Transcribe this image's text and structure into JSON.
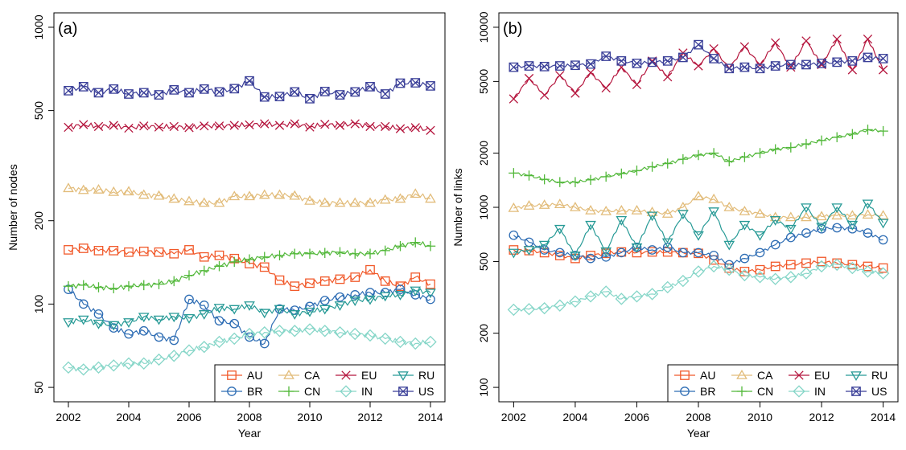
{
  "chart_data": [
    {
      "type": "line",
      "panel_label": "(a)",
      "xlabel": "Year",
      "ylabel": "Number of nodes",
      "xlim": [
        2002,
        2014
      ],
      "ylim": [
        50,
        1000
      ],
      "yscale": "log",
      "xticks": [
        "2002",
        "2004",
        "2006",
        "2008",
        "2010",
        "2012",
        "2014"
      ],
      "yticks": [
        "50",
        "100",
        "200",
        "500",
        "1000"
      ],
      "grid": false,
      "legend_position": "bottom-right",
      "series": [
        {
          "name": "AU",
          "color": "#f1592a",
          "marker": "square",
          "x": [
            2002,
            2002.5,
            2003,
            2003.5,
            2004,
            2004.5,
            2005,
            2005.5,
            2006,
            2006.5,
            2007,
            2007.5,
            2008,
            2008.5,
            2009,
            2009.5,
            2010,
            2010.5,
            2011,
            2011.5,
            2012,
            2012.5,
            2013,
            2013.5,
            2014
          ],
          "values": [
            157,
            159,
            156,
            156,
            154,
            155,
            154,
            152,
            157,
            148,
            150,
            146,
            140,
            136,
            122,
            116,
            119,
            121,
            123,
            125,
            133,
            121,
            116,
            125,
            118
          ]
        },
        {
          "name": "BR",
          "color": "#2e6db4",
          "marker": "circle",
          "x": [
            2002,
            2002.5,
            2003,
            2003.5,
            2004,
            2004.5,
            2005,
            2005.5,
            2006,
            2006.5,
            2007,
            2007.5,
            2008,
            2008.5,
            2009,
            2009.5,
            2010,
            2010.5,
            2011,
            2011.5,
            2012,
            2012.5,
            2013,
            2013.5,
            2014
          ],
          "values": [
            113,
            100,
            92,
            82,
            78,
            80,
            76,
            74,
            104,
            99,
            87,
            85,
            76,
            72,
            96,
            95,
            98,
            103,
            106,
            108,
            110,
            110,
            113,
            108,
            104
          ]
        },
        {
          "name": "CA",
          "color": "#e2bc7a",
          "marker": "triangle-up",
          "x": [
            2002,
            2002.5,
            2003,
            2003.5,
            2004,
            2004.5,
            2005,
            2005.5,
            2006,
            2006.5,
            2007,
            2007.5,
            2008,
            2008.5,
            2009,
            2009.5,
            2010,
            2010.5,
            2011,
            2011.5,
            2012,
            2012.5,
            2013,
            2013.5,
            2014
          ],
          "values": [
            262,
            258,
            259,
            254,
            255,
            248,
            246,
            240,
            235,
            232,
            232,
            245,
            245,
            248,
            248,
            246,
            236,
            232,
            232,
            232,
            232,
            238,
            240,
            250,
            240
          ]
        },
        {
          "name": "CN",
          "color": "#52b83a",
          "marker": "plus",
          "x": [
            2002,
            2002.5,
            2003,
            2003.5,
            2004,
            2004.5,
            2005,
            2005.5,
            2006,
            2006.5,
            2007,
            2007.5,
            2008,
            2008.5,
            2009,
            2009.5,
            2010,
            2010.5,
            2011,
            2011.5,
            2012,
            2012.5,
            2013,
            2013.5,
            2014
          ],
          "values": [
            116,
            117,
            115,
            114,
            116,
            117,
            118,
            121,
            127,
            132,
            137,
            142,
            145,
            148,
            150,
            152,
            152,
            153,
            154,
            152,
            152,
            156,
            162,
            167,
            162
          ]
        },
        {
          "name": "EU",
          "color": "#b5163e",
          "marker": "x",
          "x": [
            2002,
            2002.5,
            2003,
            2003.5,
            2004,
            2004.5,
            2005,
            2005.5,
            2006,
            2006.5,
            2007,
            2007.5,
            2008,
            2008.5,
            2009,
            2009.5,
            2010,
            2010.5,
            2011,
            2011.5,
            2012,
            2012.5,
            2013,
            2013.5,
            2014
          ],
          "values": [
            435,
            445,
            438,
            442,
            432,
            440,
            436,
            438,
            434,
            440,
            440,
            442,
            444,
            448,
            442,
            448,
            436,
            446,
            442,
            448,
            438,
            438,
            430,
            434,
            424
          ]
        },
        {
          "name": "IN",
          "color": "#86d6c8",
          "marker": "diamond",
          "x": [
            2002,
            2002.5,
            2003,
            2003.5,
            2004,
            2004.5,
            2005,
            2005.5,
            2006,
            2006.5,
            2007,
            2007.5,
            2008,
            2008.5,
            2009,
            2009.5,
            2010,
            2010.5,
            2011,
            2011.5,
            2012,
            2012.5,
            2013,
            2013.5,
            2014
          ],
          "values": [
            59,
            58,
            59,
            60,
            61,
            61,
            63,
            65,
            68,
            70,
            73,
            75,
            78,
            79,
            80,
            80,
            81,
            80,
            79,
            78,
            77,
            75,
            73,
            72,
            73
          ]
        },
        {
          "name": "RU",
          "color": "#279a96",
          "marker": "triangle-down",
          "x": [
            2002,
            2002.5,
            2003,
            2003.5,
            2004,
            2004.5,
            2005,
            2005.5,
            2006,
            2006.5,
            2007,
            2007.5,
            2008,
            2008.5,
            2009,
            2009.5,
            2010,
            2010.5,
            2011,
            2011.5,
            2012,
            2012.5,
            2013,
            2013.5,
            2014
          ],
          "values": [
            86,
            88,
            85,
            84,
            86,
            90,
            88,
            90,
            89,
            92,
            97,
            96,
            99,
            93,
            96,
            92,
            94,
            96,
            99,
            103,
            104,
            107,
            108,
            112,
            110
          ]
        },
        {
          "name": "US",
          "color": "#3a3f98",
          "marker": "square-x",
          "x": [
            2002,
            2002.5,
            2003,
            2003.5,
            2004,
            2004.5,
            2005,
            2005.5,
            2006,
            2006.5,
            2007,
            2007.5,
            2008,
            2008.5,
            2009,
            2009.5,
            2010,
            2010.5,
            2011,
            2011.5,
            2012,
            2012.5,
            2013,
            2013.5,
            2014
          ],
          "values": [
            590,
            610,
            580,
            598,
            574,
            580,
            570,
            594,
            580,
            598,
            584,
            600,
            640,
            560,
            562,
            584,
            552,
            586,
            570,
            584,
            610,
            574,
            628,
            630,
            614
          ]
        }
      ]
    },
    {
      "type": "line",
      "panel_label": "(b)",
      "xlabel": "Year",
      "ylabel": "Number of links",
      "xlim": [
        2002,
        2014
      ],
      "ylim": [
        100,
        10000
      ],
      "yscale": "log",
      "xticks": [
        "2002",
        "2004",
        "2006",
        "2008",
        "2010",
        "2012",
        "2014"
      ],
      "yticks": [
        "100",
        "200",
        "500",
        "1000",
        "2000",
        "5000",
        "10000"
      ],
      "grid": false,
      "legend_position": "bottom-right",
      "series": [
        {
          "name": "AU",
          "color": "#f1592a",
          "marker": "square",
          "x": [
            2002,
            2002.5,
            2003,
            2003.5,
            2004,
            2004.5,
            2005,
            2005.5,
            2006,
            2006.5,
            2007,
            2007.5,
            2008,
            2008.5,
            2009,
            2009.5,
            2010,
            2010.5,
            2011,
            2011.5,
            2012,
            2012.5,
            2013,
            2013.5,
            2014
          ],
          "values": [
            580,
            575,
            560,
            540,
            520,
            540,
            555,
            565,
            560,
            565,
            565,
            560,
            555,
            510,
            460,
            440,
            450,
            470,
            480,
            490,
            500,
            490,
            480,
            470,
            460
          ]
        },
        {
          "name": "BR",
          "color": "#2e6db4",
          "marker": "circle",
          "x": [
            2002,
            2002.5,
            2003,
            2003.5,
            2004,
            2004.5,
            2005,
            2005.5,
            2006,
            2006.5,
            2007,
            2007.5,
            2008,
            2008.5,
            2009,
            2009.5,
            2010,
            2010.5,
            2011,
            2011.5,
            2012,
            2012.5,
            2013,
            2013.5,
            2014
          ],
          "values": [
            700,
            640,
            580,
            560,
            540,
            520,
            530,
            560,
            600,
            580,
            600,
            560,
            560,
            540,
            480,
            520,
            560,
            620,
            680,
            720,
            760,
            770,
            760,
            720,
            660
          ]
        },
        {
          "name": "CA",
          "color": "#e2bc7a",
          "marker": "triangle-up",
          "x": [
            2002,
            2002.5,
            2003,
            2003.5,
            2004,
            2004.5,
            2005,
            2005.5,
            2006,
            2006.5,
            2007,
            2007.5,
            2008,
            2008.5,
            2009,
            2009.5,
            2010,
            2010.5,
            2011,
            2011.5,
            2012,
            2012.5,
            2013,
            2013.5,
            2014
          ],
          "values": [
            990,
            1020,
            1030,
            1040,
            1000,
            960,
            950,
            960,
            960,
            940,
            920,
            1000,
            1150,
            1110,
            1000,
            950,
            920,
            880,
            880,
            880,
            890,
            900,
            900,
            910,
            900
          ]
        },
        {
          "name": "CN",
          "color": "#52b83a",
          "marker": "plus",
          "x": [
            2002,
            2002.5,
            2003,
            2003.5,
            2004,
            2004.5,
            2005,
            2005.5,
            2006,
            2006.5,
            2007,
            2007.5,
            2008,
            2008.5,
            2009,
            2009.5,
            2010,
            2010.5,
            2011,
            2011.5,
            2012,
            2012.5,
            2013,
            2013.5,
            2014
          ],
          "values": [
            1550,
            1500,
            1430,
            1380,
            1380,
            1420,
            1480,
            1540,
            1600,
            1680,
            1750,
            1850,
            1950,
            2000,
            1800,
            1900,
            2000,
            2100,
            2150,
            2250,
            2350,
            2450,
            2550,
            2700,
            2650
          ]
        },
        {
          "name": "EU",
          "color": "#b5163e",
          "marker": "x",
          "x": [
            2002,
            2002.5,
            2003,
            2003.5,
            2004,
            2004.5,
            2005,
            2005.5,
            2006,
            2006.5,
            2007,
            2007.5,
            2008,
            2008.5,
            2009,
            2009.5,
            2010,
            2010.5,
            2011,
            2011.5,
            2012,
            2012.5,
            2013,
            2013.5,
            2014
          ],
          "values": [
            4000,
            5200,
            4200,
            5400,
            4300,
            5600,
            4600,
            6000,
            4800,
            6500,
            5300,
            7200,
            6100,
            7600,
            5900,
            7800,
            6200,
            8200,
            6000,
            8400,
            6200,
            8600,
            5800,
            8600,
            5800
          ]
        },
        {
          "name": "IN",
          "color": "#86d6c8",
          "marker": "diamond",
          "x": [
            2002,
            2002.5,
            2003,
            2003.5,
            2004,
            2004.5,
            2005,
            2005.5,
            2006,
            2006.5,
            2007,
            2007.5,
            2008,
            2008.5,
            2009,
            2009.5,
            2010,
            2010.5,
            2011,
            2011.5,
            2012,
            2012.5,
            2013,
            2013.5,
            2014
          ],
          "values": [
            270,
            272,
            275,
            285,
            300,
            320,
            340,
            310,
            320,
            330,
            360,
            390,
            440,
            470,
            450,
            420,
            410,
            400,
            410,
            430,
            470,
            480,
            460,
            440,
            430
          ]
        },
        {
          "name": "RU",
          "color": "#279a96",
          "marker": "triangle-down",
          "x": [
            2002,
            2002.5,
            2003,
            2003.5,
            2004,
            2004.5,
            2005,
            2005.5,
            2006,
            2006.5,
            2007,
            2007.5,
            2008,
            2008.5,
            2009,
            2009.5,
            2010,
            2010.5,
            2011,
            2011.5,
            2012,
            2012.5,
            2013,
            2013.5,
            2014
          ],
          "values": [
            560,
            580,
            620,
            760,
            540,
            800,
            570,
            850,
            600,
            900,
            640,
            920,
            700,
            950,
            620,
            800,
            700,
            850,
            760,
            1000,
            780,
            1000,
            800,
            1050,
            820
          ]
        },
        {
          "name": "US",
          "color": "#3a3f98",
          "marker": "square-x",
          "x": [
            2002,
            2002.5,
            2003,
            2003.5,
            2004,
            2004.5,
            2005,
            2005.5,
            2006,
            2006.5,
            2007,
            2007.5,
            2008,
            2008.5,
            2009,
            2009.5,
            2010,
            2010.5,
            2011,
            2011.5,
            2012,
            2012.5,
            2013,
            2013.5,
            2014
          ],
          "values": [
            6000,
            6100,
            6050,
            6100,
            6150,
            6250,
            6900,
            6500,
            6300,
            6400,
            6500,
            6800,
            8000,
            6700,
            5900,
            6000,
            5900,
            6100,
            6200,
            6200,
            6300,
            6400,
            6500,
            6800,
            6700
          ]
        }
      ]
    }
  ]
}
